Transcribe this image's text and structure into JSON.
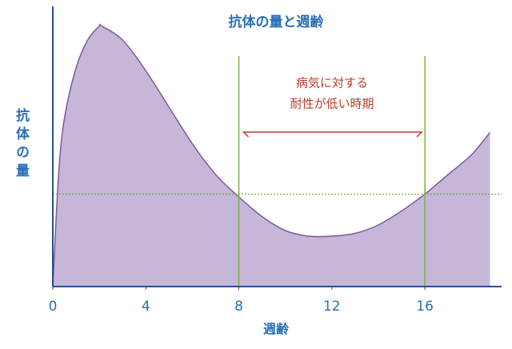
{
  "chart_data": {
    "type": "area",
    "title": "抗体の量と週齢",
    "x_label": "週齢",
    "y_label": "抗体の量",
    "x": [
      0,
      0.25,
      0.5,
      1,
      1.5,
      2,
      2.1,
      3,
      4,
      5,
      6,
      7,
      8,
      9,
      10,
      11,
      12,
      13,
      14,
      15,
      16,
      17,
      18,
      18.8
    ],
    "values": [
      0,
      40,
      60,
      78,
      88,
      93,
      93,
      88,
      77,
      64,
      51,
      40,
      32,
      25,
      20,
      18,
      18,
      19,
      22,
      27,
      33,
      40,
      47,
      55
    ],
    "color": "#c6b6d8",
    "line_color": "#7a5a9e",
    "xlim": [
      0,
      19.3
    ],
    "xticks": [
      0,
      4,
      8,
      12,
      16
    ],
    "ylim": [
      0,
      100
    ],
    "threshold": 33,
    "vlines": [
      8,
      16
    ],
    "annotation": [
      "病気に対する",
      "耐性が低い時期"
    ]
  }
}
